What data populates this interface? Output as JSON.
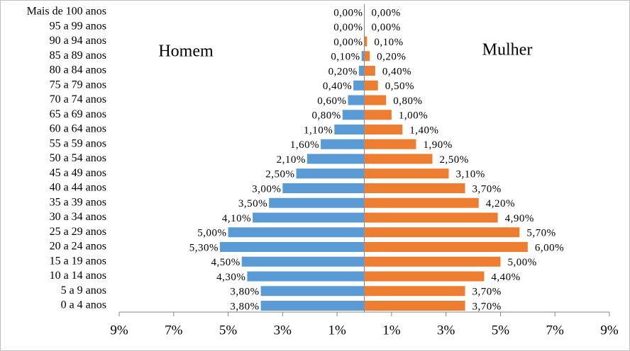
{
  "chart_data": {
    "type": "pyramid",
    "categories": [
      "Mais de 100 anos",
      "95 a 99 anos",
      "90 a 94 anos",
      "85 a 89 anos",
      "80 a 84 anos",
      "75 a 79 anos",
      "70 a 74 anos",
      "65 a 69 anos",
      "60 a 64 anos",
      "55 a 59 anos",
      "50 a 54 anos",
      "45 a 49 anos",
      "40 a 44 anos",
      "35 a 39 anos",
      "30 a 34 anos",
      "25 a 29 anos",
      "20 a 24 anos",
      "15 a 19 anos",
      "10 a 14 anos",
      "5 a 9 anos",
      "0 a 4 anos"
    ],
    "series": [
      {
        "name": "Homem",
        "color": "#5b9bd5",
        "values": [
          0,
          0,
          0,
          -0.1,
          -0.2,
          -0.4,
          -0.6,
          -0.8,
          -1.1,
          -1.6,
          -2.1,
          -2.5,
          -3.0,
          -3.5,
          -4.1,
          -5.0,
          -5.3,
          -4.5,
          -4.3,
          -3.8,
          -3.8
        ],
        "value_labels": [
          "0,00%",
          "0,00%",
          "0,00%",
          "0,10%",
          "0,20%",
          "0,40%",
          "0,60%",
          "0,80%",
          "1,10%",
          "1,60%",
          "2,10%",
          "2,50%",
          "3,00%",
          "3,50%",
          "4,10%",
          "5,00%",
          "5,30%",
          "4,50%",
          "4,30%",
          "3,80%",
          "3,80%"
        ]
      },
      {
        "name": "Mulher",
        "color": "#ed7d31",
        "values": [
          0,
          0,
          0.1,
          0.2,
          0.4,
          0.5,
          0.8,
          1.0,
          1.4,
          1.9,
          2.5,
          3.1,
          3.7,
          4.2,
          4.9,
          5.7,
          6.0,
          5.0,
          4.4,
          3.7,
          3.7
        ],
        "value_labels": [
          "0,00%",
          "0,00%",
          "0,10%",
          "0,20%",
          "0,40%",
          "0,50%",
          "0,80%",
          "1,00%",
          "1,40%",
          "1,90%",
          "2,50%",
          "3,10%",
          "3,70%",
          "4,20%",
          "4,90%",
          "5,70%",
          "6,00%",
          "5,00%",
          "4,40%",
          "3,70%",
          "3,70%"
        ]
      }
    ],
    "xlim": [
      -9,
      9
    ],
    "xticks": [
      {
        "value": -9,
        "label": "9%"
      },
      {
        "value": -7,
        "label": "7%"
      },
      {
        "value": -5,
        "label": "5%"
      },
      {
        "value": -3,
        "label": "3%"
      },
      {
        "value": -1,
        "label": "1%"
      },
      {
        "value": 1,
        "label": "1%"
      },
      {
        "value": 3,
        "label": "3%"
      },
      {
        "value": 5,
        "label": "5%"
      },
      {
        "value": 7,
        "label": "7%"
      },
      {
        "value": 9,
        "label": "9%"
      }
    ]
  }
}
